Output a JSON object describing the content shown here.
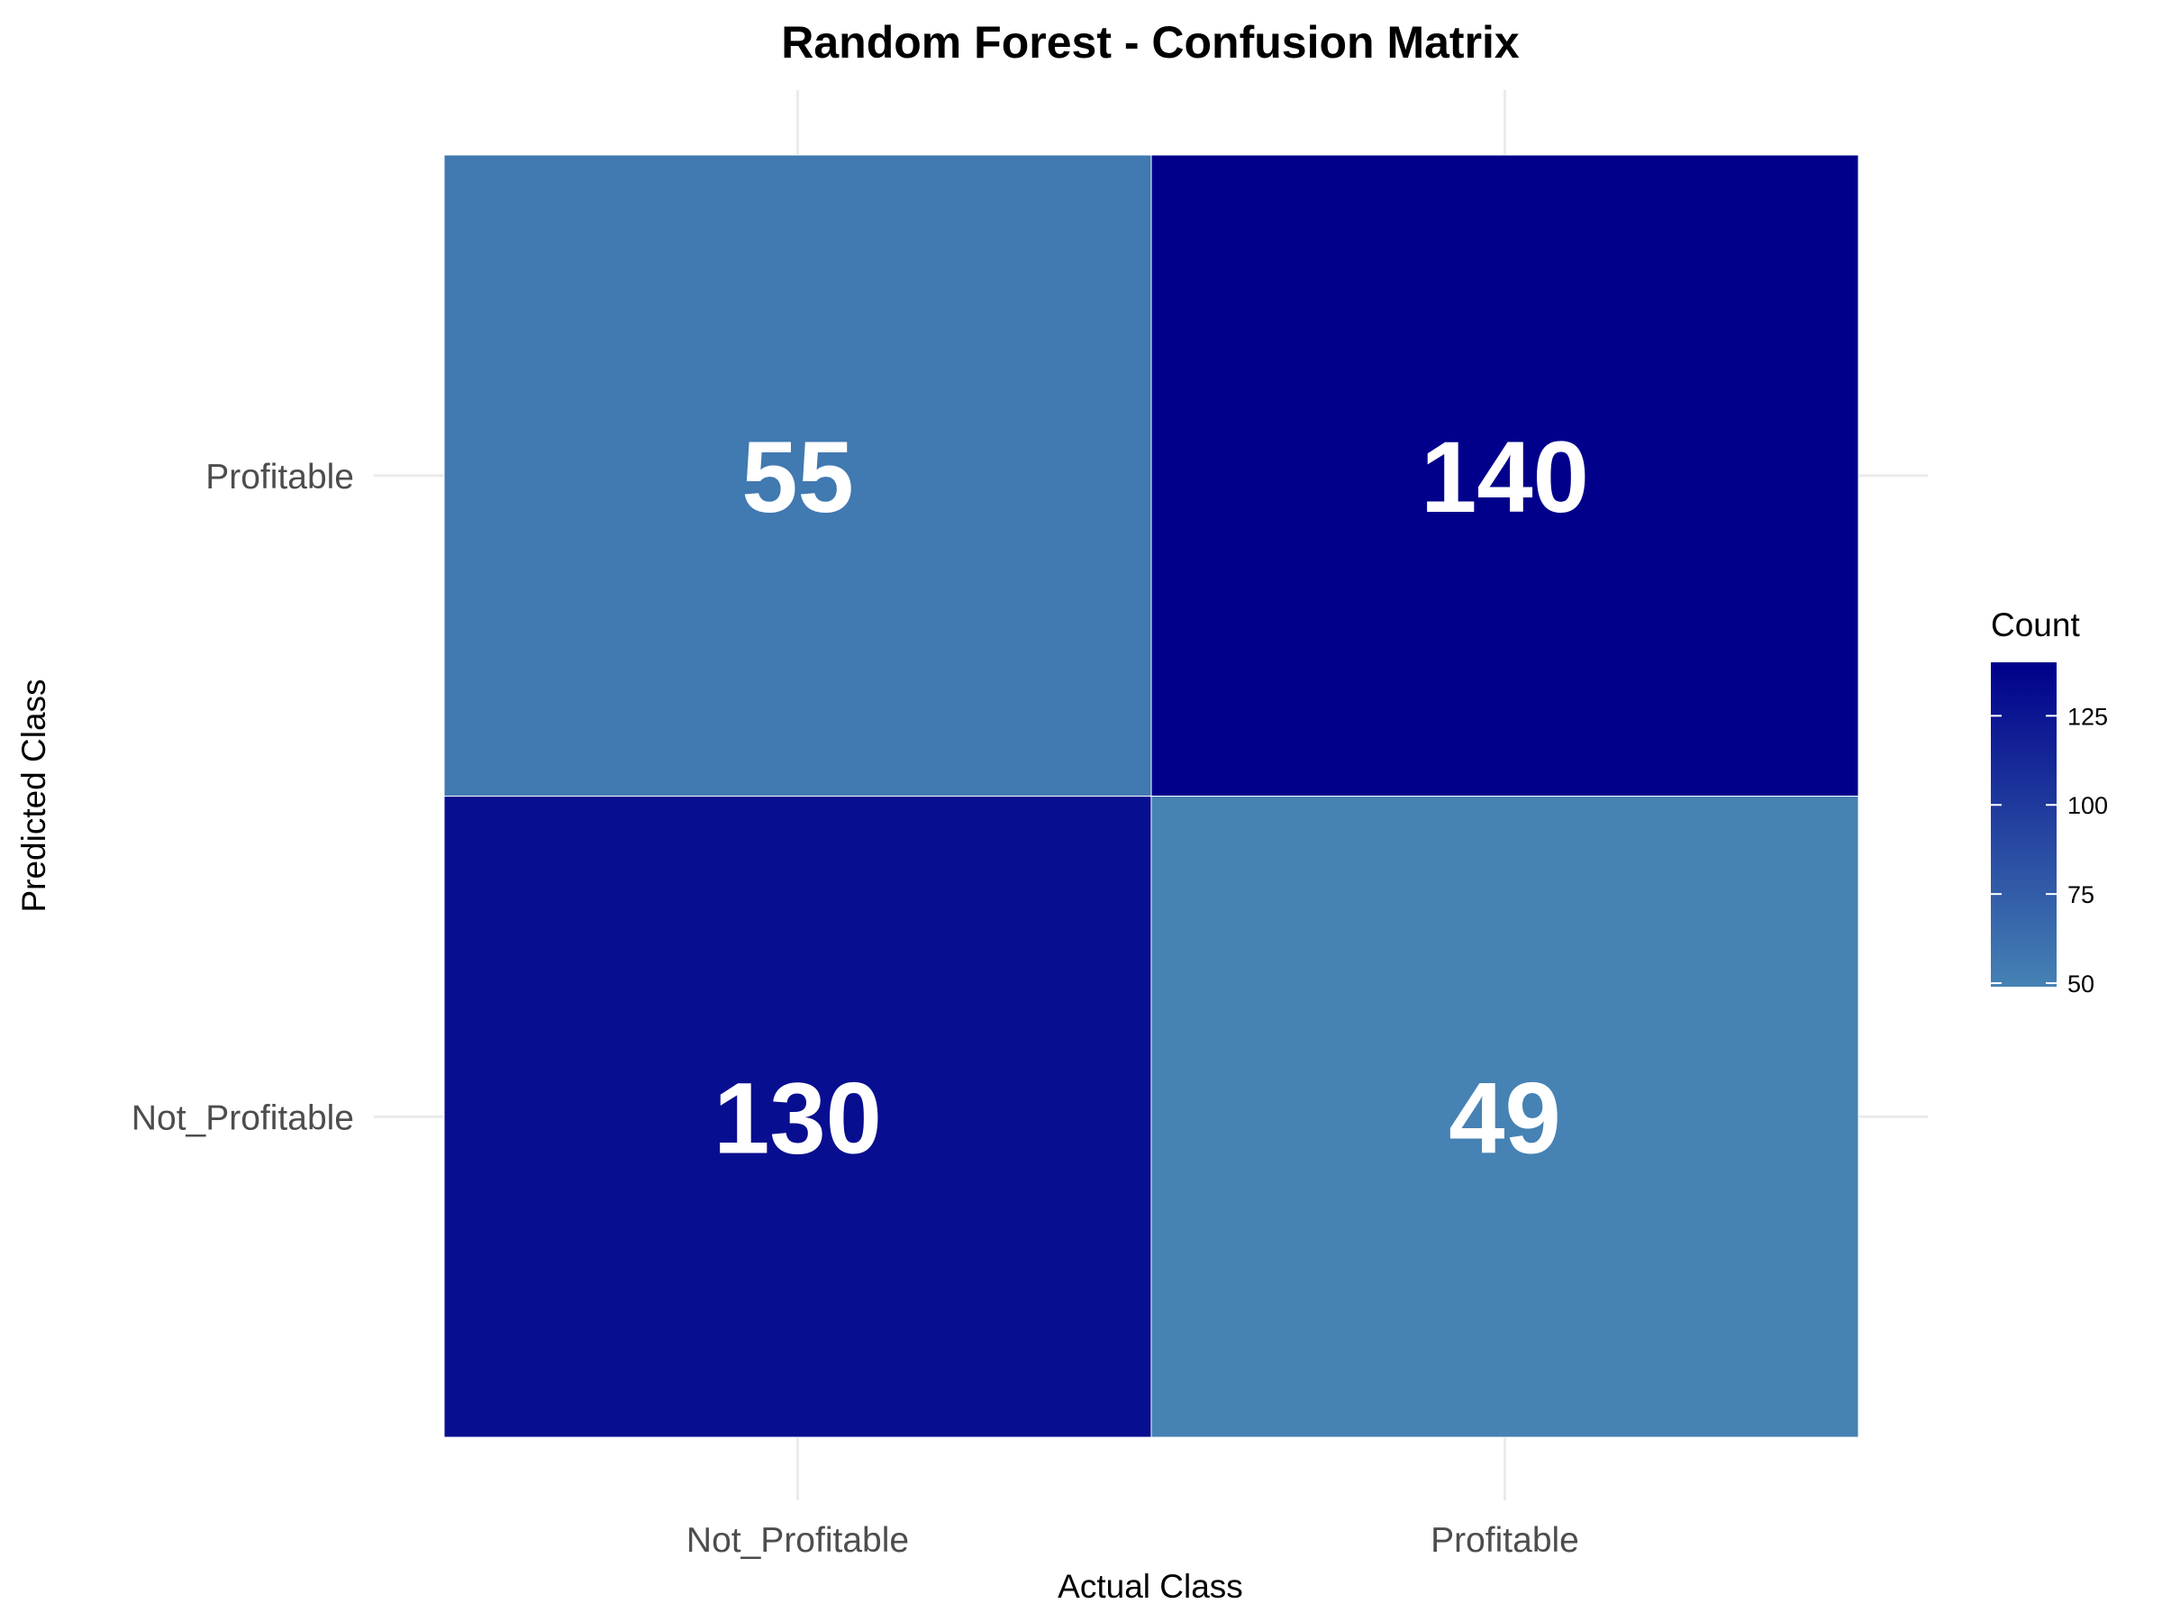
{
  "chart_data": {
    "type": "heatmap",
    "title": "Random Forest - Confusion Matrix",
    "xlabel": "Actual Class",
    "ylabel": "Predicted Class",
    "x_categories": [
      "Not_Profitable",
      "Profitable"
    ],
    "y_categories": [
      "Not_Profitable",
      "Profitable"
    ],
    "cells": [
      {
        "x": "Not_Profitable",
        "y": "Profitable",
        "value": 55
      },
      {
        "x": "Profitable",
        "y": "Profitable",
        "value": 140
      },
      {
        "x": "Not_Profitable",
        "y": "Not_Profitable",
        "value": 130
      },
      {
        "x": "Profitable",
        "y": "Not_Profitable",
        "value": 49
      }
    ],
    "legend": {
      "title": "Count",
      "ticks": [
        50,
        75,
        100,
        125
      ],
      "range": [
        49,
        140
      ],
      "placement": "right"
    },
    "color_scale": {
      "low": "#4682b4",
      "high": "#00008b"
    },
    "grid": true
  }
}
